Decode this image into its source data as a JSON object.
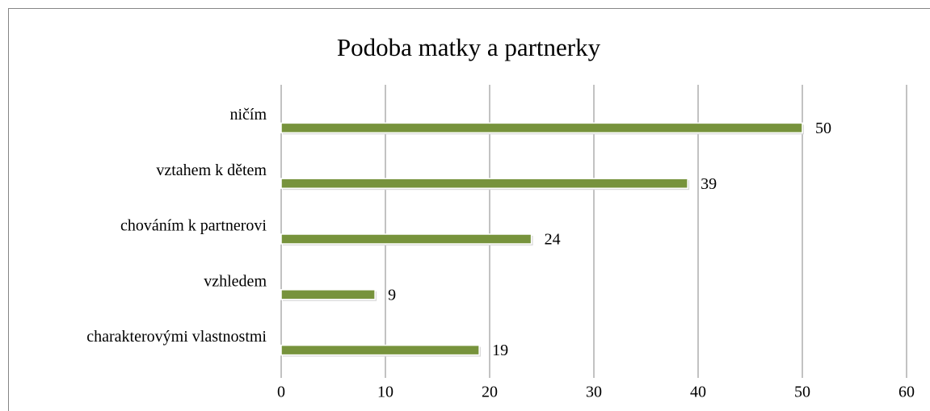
{
  "chart_data": {
    "type": "bar",
    "orientation": "horizontal",
    "title": "Podoba matky a partnerky",
    "categories": [
      "ničím",
      "vztahem k dětem",
      "chováním k partnerovi",
      "vzhledem",
      "charakterovými vlastnostmi"
    ],
    "values": [
      50,
      39,
      24,
      9,
      19
    ],
    "color": "#77933c",
    "xlim": [
      0,
      60
    ],
    "xticks": [
      0,
      10,
      20,
      30,
      40,
      50,
      60
    ],
    "grid": true
  }
}
